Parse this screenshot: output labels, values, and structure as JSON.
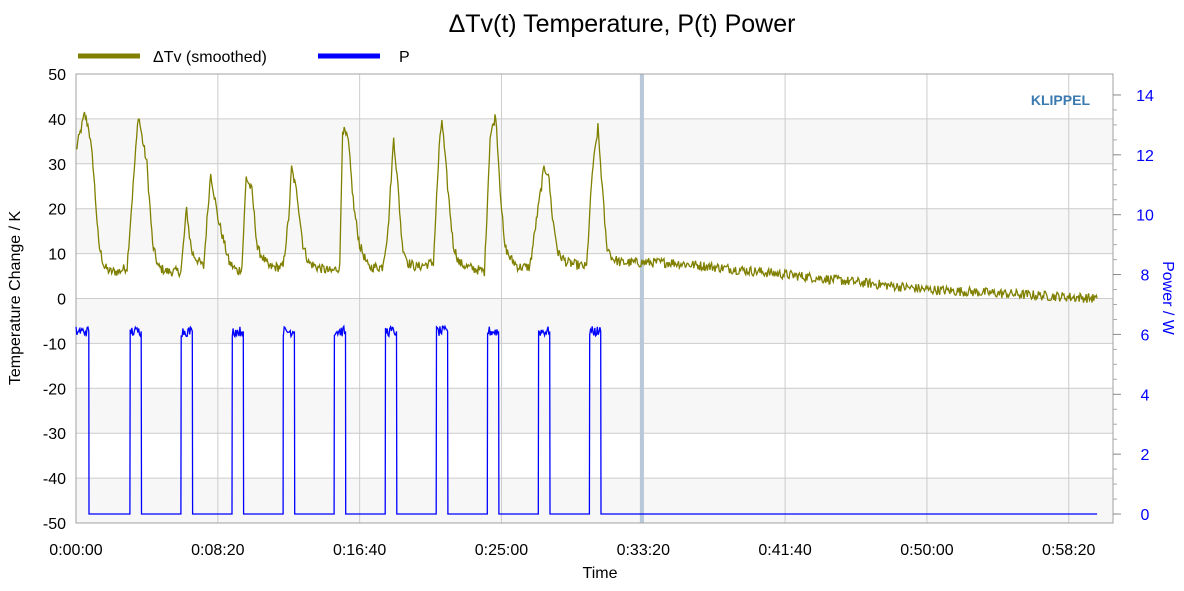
{
  "colors": {
    "temperature": "#808000",
    "power": "#0000ff",
    "brand": "#3a7ab0",
    "band": "#f7f7f7",
    "grid": "#cccccc",
    "marker": "#b8c8d8"
  },
  "chart_data": {
    "type": "line",
    "title": "ΔTv(t) Temperature, P(t) Power",
    "xlabel": "Time",
    "ylabel": "Temperature Change / K",
    "y2label": "Power / W",
    "brand": "KLIPPEL",
    "xlim": [
      "0:00:00",
      "1:00:56"
    ],
    "ylim": [
      -50,
      50
    ],
    "y2lim": [
      -0.3,
      14.7
    ],
    "x_ticks": [
      "0:00:00",
      "0:08:20",
      "0:16:40",
      "0:25:00",
      "0:33:20",
      "0:41:40",
      "0:50:00",
      "0:58:20"
    ],
    "y_ticks": [
      50,
      40,
      30,
      20,
      10,
      0,
      -10,
      -20,
      -30,
      -40,
      -50
    ],
    "y2_ticks": [
      14,
      12,
      10,
      8,
      6,
      4,
      2,
      0
    ],
    "grid": true,
    "legend_position": "top-left",
    "marker_line_x": "0:33:15",
    "series": [
      {
        "name": "ΔTv (smoothed)",
        "axis": "left",
        "x": [
          "0:00:00",
          "0:00:30",
          "0:00:45",
          "0:01:00",
          "0:01:20",
          "0:01:40",
          "0:02:00",
          "0:02:30",
          "0:03:00",
          "0:03:40",
          "0:03:55",
          "0:04:10",
          "0:04:30",
          "0:04:50",
          "0:05:20",
          "0:06:10",
          "0:06:30",
          "0:06:40",
          "0:06:50",
          "0:07:30",
          "0:07:45",
          "0:07:55",
          "0:08:20",
          "0:09:00",
          "0:09:30",
          "0:09:45",
          "0:10:00",
          "0:10:20",
          "0:10:40",
          "0:11:20",
          "0:12:10",
          "0:12:30",
          "0:12:40",
          "0:13:00",
          "0:13:20",
          "0:13:40",
          "0:14:10",
          "0:15:00",
          "0:15:30",
          "0:15:40",
          "0:16:00",
          "0:16:20",
          "0:16:40",
          "0:17:10",
          "0:18:00",
          "0:18:20",
          "0:18:40",
          "0:18:55",
          "0:19:10",
          "0:19:30",
          "0:20:00",
          "0:21:00",
          "0:21:20",
          "0:21:30",
          "0:21:50",
          "0:22:10",
          "0:22:30",
          "0:23:00",
          "0:24:00",
          "0:24:20",
          "0:24:40",
          "0:24:55",
          "0:25:10",
          "0:25:30",
          "0:26:00",
          "0:26:40",
          "0:27:00",
          "0:27:30",
          "0:27:45",
          "0:28:00",
          "0:28:20",
          "0:28:50",
          "0:30:00",
          "0:30:20",
          "0:30:40",
          "0:30:55",
          "0:31:10",
          "0:31:30",
          "0:32:00",
          "0:33:00",
          "0:35:00",
          "0:40:00",
          "0:45:00",
          "0:50:00",
          "0:55:00",
          "1:00:00"
        ],
        "values": [
          33,
          41,
          38,
          30,
          12,
          7,
          6,
          6,
          7,
          41,
          35,
          30,
          12,
          7,
          6,
          6,
          20,
          14,
          10,
          7,
          20,
          28,
          18,
          8,
          6,
          7,
          27,
          24,
          11,
          7,
          7,
          18,
          29,
          23,
          12,
          8,
          7,
          6,
          7,
          38,
          35,
          20,
          12,
          7,
          7,
          15,
          36,
          25,
          12,
          8,
          7,
          8,
          33,
          40,
          25,
          12,
          8,
          7,
          6,
          36,
          41,
          25,
          12,
          9,
          7,
          7,
          16,
          29,
          28,
          18,
          10,
          8,
          7,
          28,
          38,
          25,
          12,
          9,
          8,
          8,
          8,
          6,
          4,
          2,
          1,
          0
        ]
      },
      {
        "name": "P",
        "axis": "right",
        "x": [
          "0:00:00",
          "0:00:45",
          "0:00:46",
          "0:03:10",
          "0:03:11",
          "0:03:50",
          "0:03:51",
          "0:06:10",
          "0:06:11",
          "0:06:50",
          "0:06:51",
          "0:09:10",
          "0:09:11",
          "0:09:50",
          "0:09:51",
          "0:12:10",
          "0:12:11",
          "0:12:50",
          "0:12:51",
          "0:15:10",
          "0:15:11",
          "0:15:50",
          "0:15:51",
          "0:18:10",
          "0:18:11",
          "0:18:50",
          "0:18:51",
          "0:21:10",
          "0:21:11",
          "0:21:50",
          "0:21:51",
          "0:24:10",
          "0:24:11",
          "0:24:50",
          "0:24:51",
          "0:27:10",
          "0:27:11",
          "0:27:50",
          "0:27:51",
          "0:30:10",
          "0:30:11",
          "0:30:50",
          "0:30:51",
          "1:00:00"
        ],
        "values": [
          6.1,
          6.1,
          0,
          0,
          6.1,
          6.1,
          0,
          0,
          6.1,
          6.1,
          0,
          0,
          6.1,
          6.1,
          0,
          0,
          6.1,
          6.1,
          0,
          0,
          6.1,
          6.1,
          0,
          0,
          6.1,
          6.1,
          0,
          0,
          6.1,
          6.1,
          0,
          0,
          6.1,
          6.1,
          0,
          0,
          6.1,
          6.1,
          0,
          0,
          6.1,
          6.1,
          0,
          0
        ]
      }
    ]
  }
}
